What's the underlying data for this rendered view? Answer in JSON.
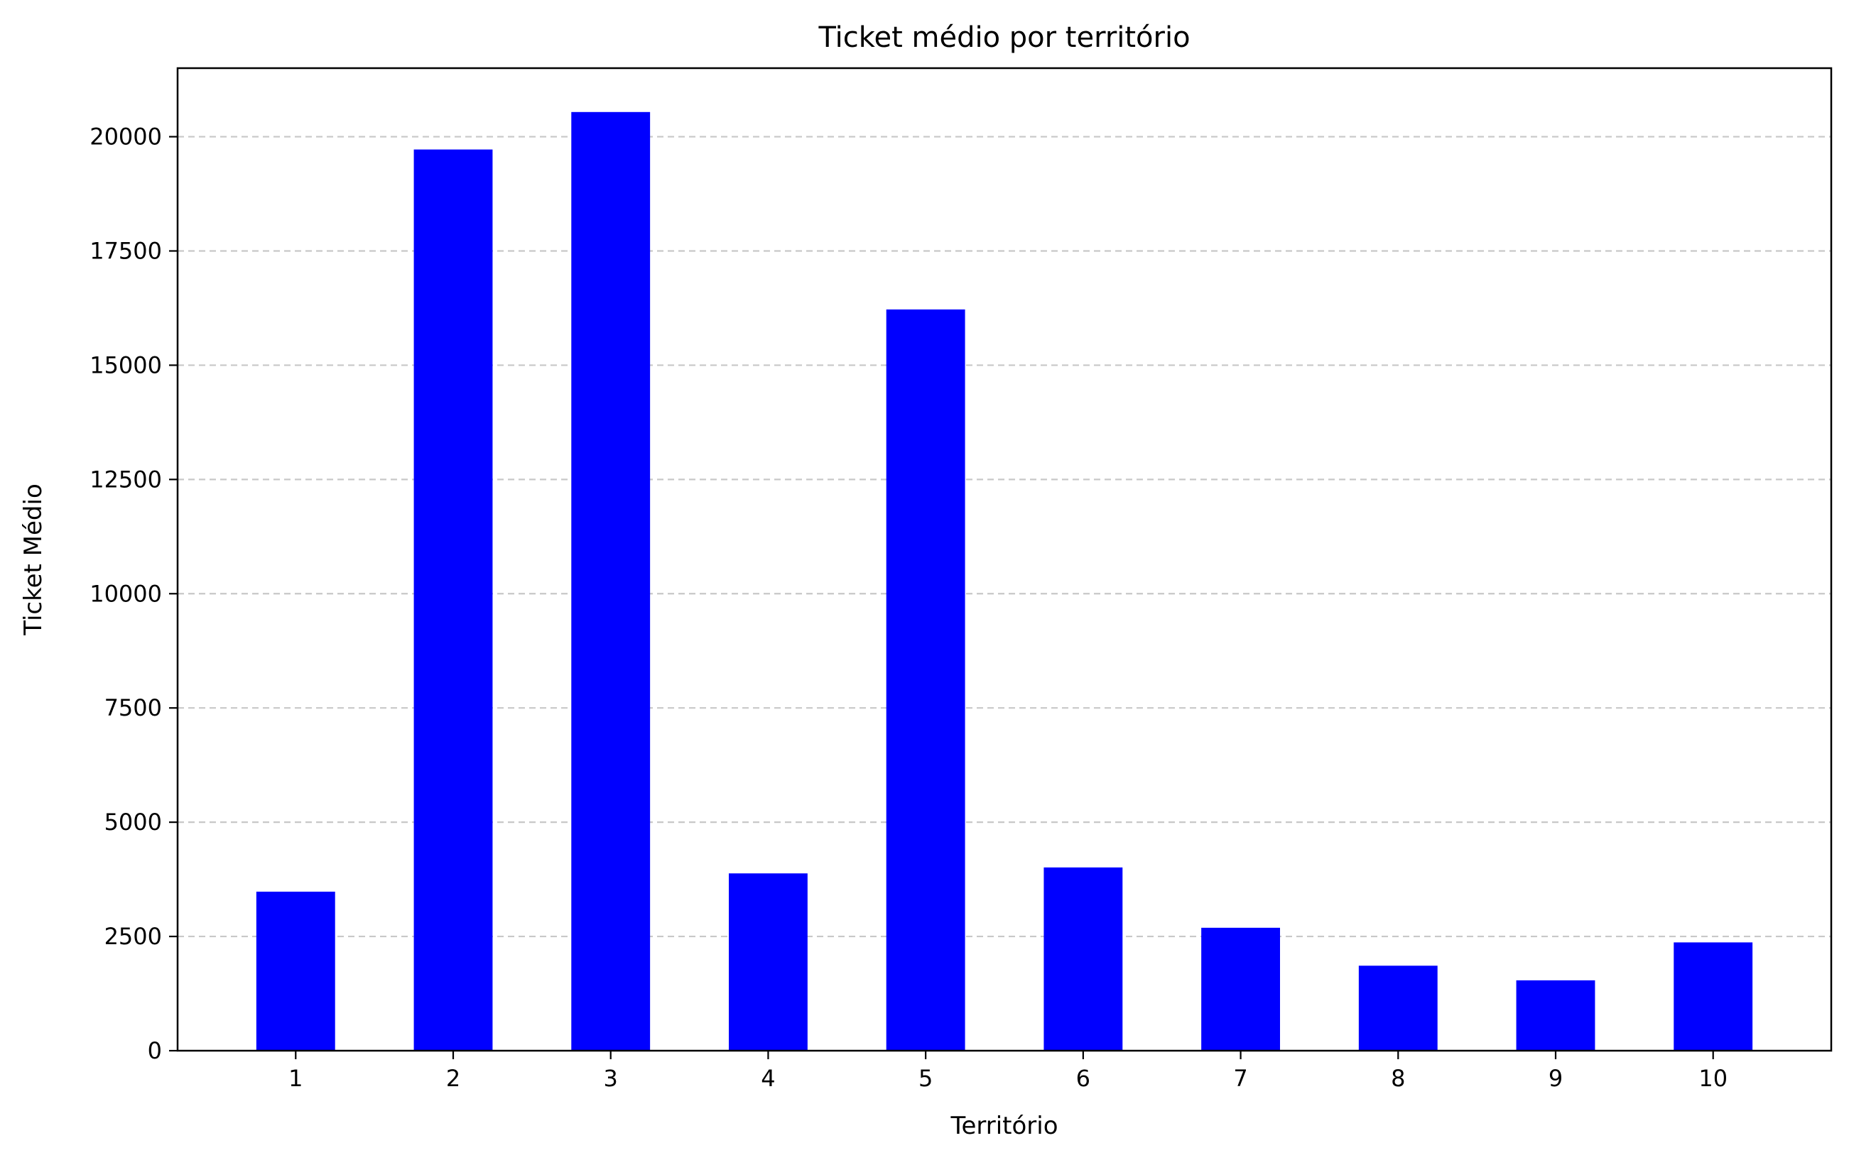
{
  "chart_data": {
    "type": "bar",
    "title": "Ticket médio por território",
    "xlabel": "Território",
    "ylabel": "Ticket Médio",
    "categories": [
      "1",
      "2",
      "3",
      "4",
      "5",
      "6",
      "7",
      "8",
      "9",
      "10"
    ],
    "values": [
      3480,
      19720,
      20540,
      3880,
      16220,
      4010,
      2690,
      1860,
      1540,
      2370
    ],
    "ylim": [
      0,
      21500
    ],
    "yticks": [
      0,
      2500,
      5000,
      7500,
      10000,
      12500,
      15000,
      17500,
      20000
    ],
    "grid": "y-dashed",
    "bar_color": "#0000ff",
    "grid_color": "#c8c8c8"
  }
}
